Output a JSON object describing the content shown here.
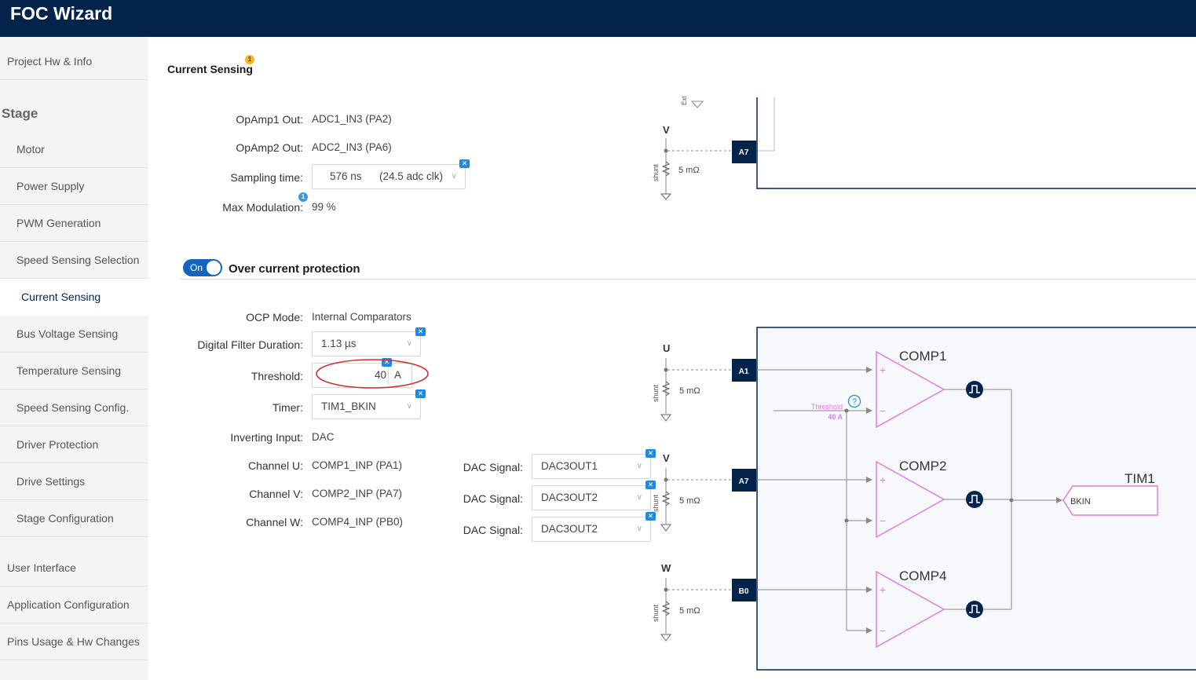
{
  "app": {
    "title": "FOC Wizard"
  },
  "sidebar": {
    "stage_heading": "Stage",
    "items_top": [
      {
        "label": "Project Hw & Info"
      }
    ],
    "stage_items": [
      {
        "label": "Motor"
      },
      {
        "label": "Power Supply"
      },
      {
        "label": "PWM Generation"
      },
      {
        "label": "Speed Sensing Selection"
      },
      {
        "label": "Current Sensing"
      },
      {
        "label": "Bus Voltage Sensing"
      },
      {
        "label": "Temperature Sensing"
      },
      {
        "label": "Speed Sensing Config."
      },
      {
        "label": "Driver Protection"
      },
      {
        "label": "Drive Settings"
      },
      {
        "label": "Stage Configuration"
      }
    ],
    "items_bottom": [
      {
        "label": "User Interface"
      },
      {
        "label": "Application Configuration"
      },
      {
        "label": "Pins Usage & Hw Changes"
      }
    ],
    "active": "Current Sensing"
  },
  "section": {
    "title": "Current Sensing",
    "badge": "1"
  },
  "sensing": {
    "opamp1_label": "OpAmp1 Out:",
    "opamp1_value": "ADC1_IN3 (PA2)",
    "opamp2_label": "OpAmp2 Out:",
    "opamp2_value": "ADC2_IN3 (PA6)",
    "sampling_label": "Sampling time:",
    "sampling_value": "576 ns",
    "sampling_extra": "(24.5 adc clk)",
    "maxmod_label": "Max Modulation:",
    "maxmod_value": "99 %",
    "maxmod_badge": "1"
  },
  "ocp": {
    "toggle_label": "On",
    "title": "Over current protection",
    "mode_label": "OCP Mode:",
    "mode_value": "Internal Comparators",
    "filter_label": "Digital Filter Duration:",
    "filter_value": "1.13 µs",
    "threshold_label": "Threshold:",
    "threshold_value": "40",
    "threshold_unit": "A",
    "timer_label": "Timer:",
    "timer_value": "TIM1_BKIN",
    "inverting_label": "Inverting Input:",
    "inverting_value": "DAC",
    "chU_label": "Channel U:",
    "chU_value": "COMP1_INP (PA1)",
    "chV_label": "Channel V:",
    "chV_value": "COMP2_INP (PA7)",
    "chW_label": "Channel W:",
    "chW_value": "COMP4_INP (PB0)",
    "dac_label": "DAC Signal:",
    "dac_values": [
      "DAC3OUT1",
      "DAC3OUT2",
      "DAC3OUT2"
    ]
  },
  "diagram_top": {
    "ext_label": "Ext",
    "phase": "V",
    "pin": "A7",
    "shunt_label": "shunt",
    "shunt_value": "5 mΩ"
  },
  "diagram_ocp": {
    "phases": [
      {
        "phase": "U",
        "pin": "A1"
      },
      {
        "phase": "V",
        "pin": "A7"
      },
      {
        "phase": "W",
        "pin": "B0"
      }
    ],
    "shunt_label": "shunt",
    "shunt_value": "5 mΩ",
    "comparators": [
      "COMP1",
      "COMP2",
      "COMP4"
    ],
    "threshold_label": "Threshold",
    "threshold_value": "40 A",
    "help": "?",
    "timer": "TIM1",
    "bkin": "BKIN"
  },
  "colors": {
    "navy": "#03234b",
    "accent": "#1565c0",
    "pink": "#e27ce0",
    "red": "#d32f2f"
  }
}
